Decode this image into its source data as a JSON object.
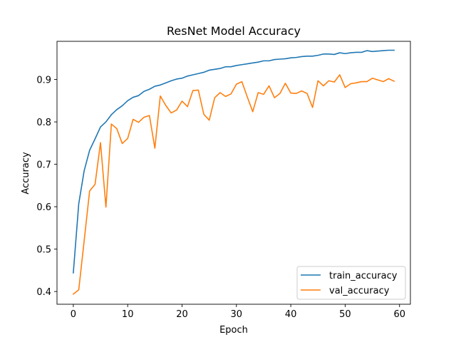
{
  "chart_data": {
    "type": "line",
    "title": "ResNet Model Accuracy",
    "xlabel": "Epoch",
    "ylabel": "Accuracy",
    "xlim": [
      -3.0,
      62.0
    ],
    "ylim": [
      0.37,
      0.99
    ],
    "xticks": [
      0,
      10,
      20,
      30,
      40,
      50,
      60
    ],
    "yticks": [
      0.4,
      0.5,
      0.6,
      0.7,
      0.8,
      0.9
    ],
    "ytick_labels": [
      "0.4",
      "0.5",
      "0.6",
      "0.7",
      "0.8",
      "0.9"
    ],
    "grid": false,
    "legend_position": "lower-right",
    "x": [
      0,
      1,
      2,
      3,
      4,
      5,
      6,
      7,
      8,
      9,
      10,
      11,
      12,
      13,
      14,
      15,
      16,
      17,
      18,
      19,
      20,
      21,
      22,
      23,
      24,
      25,
      26,
      27,
      28,
      29,
      30,
      31,
      32,
      33,
      34,
      35,
      36,
      37,
      38,
      39,
      40,
      41,
      42,
      43,
      44,
      45,
      46,
      47,
      48,
      49,
      50,
      51,
      52,
      53,
      54,
      55,
      56,
      57,
      58,
      59
    ],
    "series": [
      {
        "name": "train_accuracy",
        "color": "#1f77b4",
        "values": [
          0.444,
          0.607,
          0.685,
          0.733,
          0.76,
          0.788,
          0.8,
          0.817,
          0.829,
          0.838,
          0.85,
          0.858,
          0.862,
          0.872,
          0.877,
          0.884,
          0.887,
          0.892,
          0.897,
          0.901,
          0.903,
          0.908,
          0.911,
          0.914,
          0.917,
          0.922,
          0.924,
          0.926,
          0.93,
          0.93,
          0.933,
          0.935,
          0.937,
          0.939,
          0.941,
          0.944,
          0.944,
          0.947,
          0.948,
          0.949,
          0.951,
          0.952,
          0.954,
          0.955,
          0.955,
          0.957,
          0.96,
          0.96,
          0.959,
          0.963,
          0.961,
          0.963,
          0.964,
          0.964,
          0.968,
          0.966,
          0.967,
          0.968,
          0.969,
          0.969
        ]
      },
      {
        "name": "val_accuracy",
        "color": "#ff7f0e",
        "values": [
          0.394,
          0.404,
          0.52,
          0.637,
          0.653,
          0.751,
          0.599,
          0.795,
          0.784,
          0.749,
          0.761,
          0.806,
          0.799,
          0.811,
          0.815,
          0.738,
          0.861,
          0.839,
          0.821,
          0.828,
          0.849,
          0.836,
          0.874,
          0.875,
          0.818,
          0.804,
          0.857,
          0.869,
          0.86,
          0.866,
          0.889,
          0.895,
          0.859,
          0.824,
          0.869,
          0.865,
          0.885,
          0.857,
          0.867,
          0.891,
          0.868,
          0.867,
          0.873,
          0.867,
          0.834,
          0.897,
          0.885,
          0.897,
          0.894,
          0.911,
          0.881,
          0.89,
          0.892,
          0.895,
          0.895,
          0.903,
          0.899,
          0.895,
          0.902,
          0.896
        ]
      }
    ]
  }
}
